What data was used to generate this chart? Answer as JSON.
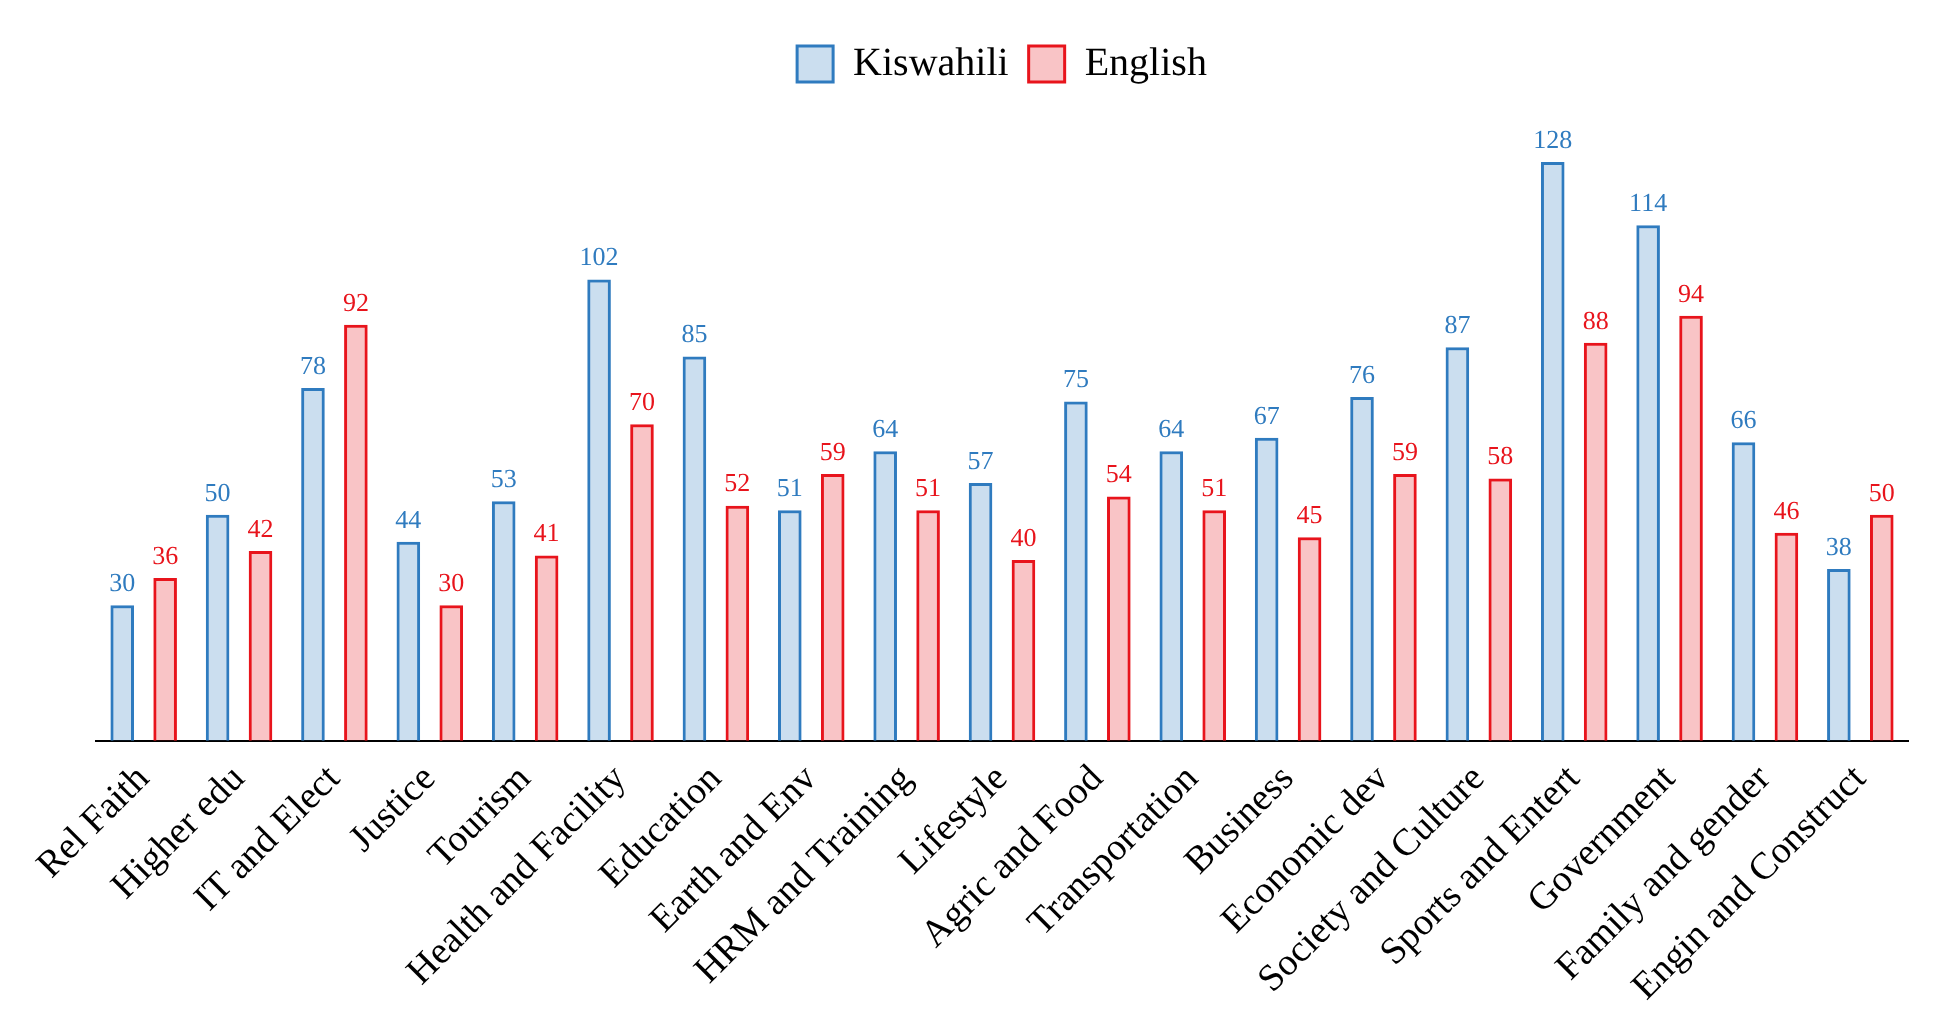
{
  "chart_data": {
    "type": "bar",
    "categories": [
      "Rel Faith",
      "Higher edu",
      "IT and Elect",
      "Justice",
      "Tourism",
      "Health and Facility",
      "Education",
      "Earth and Env",
      "HRM and Training",
      "Lifestyle",
      "Agric and Food",
      "Transportation",
      "Business",
      "Economic dev",
      "Society and Culture",
      "Sports and Entert",
      "Government",
      "Family and gender",
      "Engin and Construct"
    ],
    "series": [
      {
        "name": "Kiswahili",
        "color": "#2f7bbf",
        "values": [
          30,
          50,
          78,
          44,
          53,
          102,
          85,
          51,
          64,
          57,
          75,
          64,
          67,
          76,
          87,
          128,
          114,
          66,
          38
        ]
      },
      {
        "name": "English",
        "color": "#e8141c",
        "values": [
          36,
          42,
          92,
          30,
          41,
          70,
          52,
          59,
          51,
          40,
          54,
          51,
          45,
          59,
          58,
          88,
          94,
          46,
          50
        ]
      }
    ],
    "data_labels": true,
    "legend": "top",
    "grid": false
  }
}
